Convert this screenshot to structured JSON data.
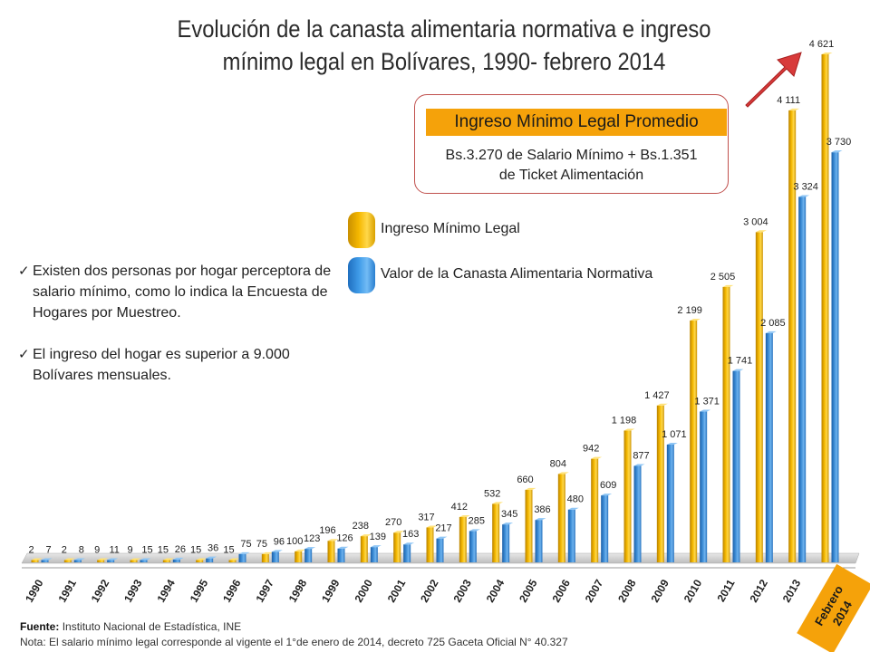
{
  "title_line1": "Evolución de la canasta alimentaria normativa e ingreso",
  "title_line2": "mínimo legal en Bolívares, 1990- febrero 2014",
  "info_box": {
    "header": "Ingreso Mínimo Legal Promedio",
    "line1": "Bs.3.270 de Salario Mínimo + Bs.1.351",
    "line2": "de Ticket Alimentación"
  },
  "notes": [
    "Existen dos personas por hogar perceptora de salario mínimo, como lo indica la Encuesta de Hogares por Muestreo.",
    "El ingreso del hogar es superior a 9.000 Bolívares mensuales."
  ],
  "footer": {
    "source_label": "Fuente:",
    "source_text": "Instituto Nacional de Estadística, INE",
    "note": "Nota: El salario mínimo legal corresponde al vigente el 1°de enero de 2014, decreto 725 Gaceta Oficial N° 40.327"
  },
  "colors": {
    "ingreso": "#f5b800",
    "canasta": "#3f8fd8",
    "highlight": "#f5a20a",
    "arrow": "#d83a3a"
  },
  "chart_data": {
    "type": "bar",
    "categories": [
      "1990",
      "1991",
      "1992",
      "1993",
      "1994",
      "1995",
      "1996",
      "1997",
      "1998",
      "1999",
      "2000",
      "2001",
      "2002",
      "2003",
      "2004",
      "2005",
      "2006",
      "2007",
      "2008",
      "2009",
      "2010",
      "2011",
      "2012",
      "2013",
      "Febrero 2014"
    ],
    "series": [
      {
        "name": "Ingreso Mínimo Legal",
        "values": [
          2,
          2,
          9,
          9,
          15,
          15,
          15,
          75,
          100,
          196,
          238,
          270,
          317,
          412,
          532,
          660,
          804,
          942,
          1198,
          1427,
          2199,
          2505,
          3004,
          4111,
          4621
        ],
        "labels": [
          "2",
          "2",
          "9",
          "9",
          "15",
          "15",
          "15",
          "75",
          "100",
          "196",
          "238",
          "270",
          "317",
          "412",
          "532",
          "660",
          "804",
          "942",
          "1 198",
          "1 427",
          "2 199",
          "2 505",
          "3 004",
          "4 111",
          "4 621"
        ]
      },
      {
        "name": "Valor de la Canasta Alimentaria Normativa",
        "values": [
          7,
          8,
          11,
          15,
          26,
          36,
          75,
          96,
          123,
          126,
          139,
          163,
          217,
          285,
          345,
          386,
          480,
          609,
          877,
          1071,
          1371,
          1741,
          2085,
          3324,
          3730
        ],
        "labels": [
          "7",
          "8",
          "11",
          "15",
          "26",
          "36",
          "75",
          "96",
          "123",
          "126",
          "139",
          "163",
          "217",
          "285",
          "345",
          "386",
          "480",
          "609",
          "877",
          "1 071",
          "1 371",
          "1 741",
          "2 085",
          "3 324",
          "3 730"
        ]
      }
    ],
    "highlight_category": "Febrero 2014"
  }
}
